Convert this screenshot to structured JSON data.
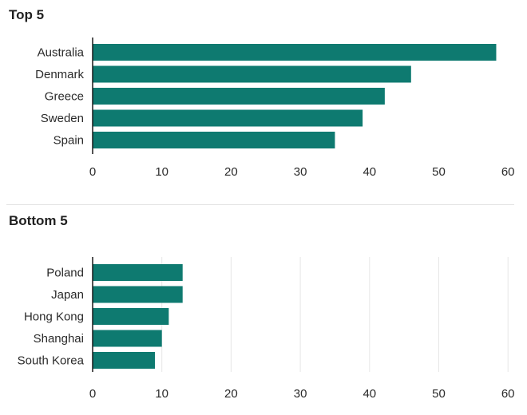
{
  "chart_data": [
    {
      "type": "bar",
      "orientation": "horizontal",
      "title": "Top 5",
      "categories": [
        "Australia",
        "Denmark",
        "Greece",
        "Sweden",
        "Spain"
      ],
      "values": [
        58.3,
        46,
        42.2,
        39,
        35
      ],
      "xlim": [
        0,
        60
      ],
      "xticks": [
        0,
        10,
        20,
        30,
        40,
        50,
        60
      ],
      "grid": false,
      "color": "#0e7a70"
    },
    {
      "type": "bar",
      "orientation": "horizontal",
      "title": "Bottom 5",
      "categories": [
        "Poland",
        "Japan",
        "Hong Kong",
        "Shanghai",
        "South Korea"
      ],
      "values": [
        13,
        13,
        11,
        10,
        9
      ],
      "xlim": [
        0,
        60
      ],
      "xticks": [
        0,
        10,
        20,
        30,
        40,
        50,
        60
      ],
      "grid": true,
      "color": "#0e7a70"
    }
  ]
}
